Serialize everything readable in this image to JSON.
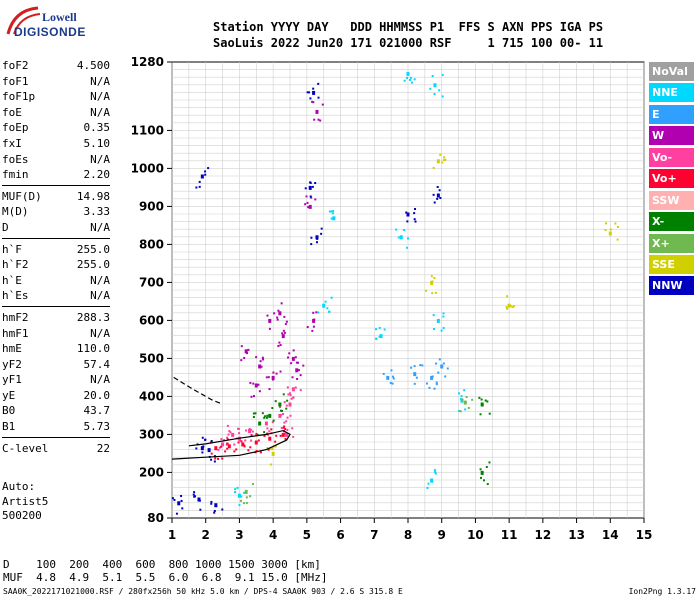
{
  "logo": {
    "line1": "Lowell",
    "line2": "DIGISONDE"
  },
  "header": {
    "line1": "Station YYYY DAY   DDD HHMMSS P1  FFS S AXN PPS IGA PS",
    "line2": "SaoLuis 2022 Jun20 171 021000 RSF     1 715 100 00- 11"
  },
  "params": [
    {
      "group": [
        {
          "name": "foF2",
          "value": "4.500"
        },
        {
          "name": "foF1",
          "value": "N/A"
        },
        {
          "name": "foF1p",
          "value": "N/A"
        },
        {
          "name": "foE",
          "value": "N/A"
        },
        {
          "name": "foEp",
          "value": "0.35"
        },
        {
          "name": "fxI",
          "value": "5.10"
        },
        {
          "name": "foEs",
          "value": "N/A"
        },
        {
          "name": "fmin",
          "value": "2.20"
        }
      ]
    },
    {
      "group": [
        {
          "name": "MUF(D)",
          "value": "14.98"
        },
        {
          "name": "M(D)",
          "value": "3.33"
        },
        {
          "name": "D",
          "value": "N/A"
        }
      ]
    },
    {
      "group": [
        {
          "name": "h`F",
          "value": "255.0"
        },
        {
          "name": "h`F2",
          "value": "255.0"
        },
        {
          "name": "h`E",
          "value": "N/A"
        },
        {
          "name": "h`Es",
          "value": "N/A"
        }
      ]
    },
    {
      "group": [
        {
          "name": "hmF2",
          "value": "288.3"
        },
        {
          "name": "hmF1",
          "value": "N/A"
        },
        {
          "name": "hmE",
          "value": "110.0"
        },
        {
          "name": "yF2",
          "value": "57.4"
        },
        {
          "name": "yF1",
          "value": "N/A"
        },
        {
          "name": "yE",
          "value": "20.0"
        },
        {
          "name": "B0",
          "value": "43.7"
        },
        {
          "name": "B1",
          "value": "5.73"
        }
      ]
    },
    {
      "group": [
        {
          "name": "C-level",
          "value": "22"
        }
      ]
    }
  ],
  "extra": {
    "auto": "Auto:",
    "artist": "Artist5",
    "code": "500200"
  },
  "legend": [
    {
      "label": "NoVal",
      "color": "#a0a0a0"
    },
    {
      "label": "NNE",
      "color": "#00d8ff"
    },
    {
      "label": "E",
      "color": "#30a0ff"
    },
    {
      "label": "W",
      "color": "#b000b0"
    },
    {
      "label": "Vo-",
      "color": "#ff40a0"
    },
    {
      "label": "Vo+",
      "color": "#ff0030"
    },
    {
      "label": "SSW",
      "color": "#ffb0b0"
    },
    {
      "label": "X-",
      "color": "#008000"
    },
    {
      "label": "X+",
      "color": "#70b850"
    },
    {
      "label": "SSE",
      "color": "#d0d000"
    },
    {
      "label": "NNW",
      "color": "#0000c0"
    }
  ],
  "dmuf": {
    "line1": "D    100  200  400  600  800 1000 1500 3000 [km]",
    "line2": "MUF  4.8  4.9  5.1  5.5  6.0  6.8  9.1 15.0 [MHz]"
  },
  "footer": {
    "left": "SAA0K_2022171021000.RSF / 280fx256h 50 kHz 5.0 km / DPS-4 SAA0K 903 / 2.6 S 315.8 E",
    "right": "Ion2Png 1.3.17"
  },
  "chart_data": {
    "type": "scatter",
    "xlim": [
      1,
      15
    ],
    "ylim": [
      80,
      1280
    ],
    "xticks": [
      1,
      2,
      3,
      4,
      5,
      6,
      7,
      8,
      9,
      10,
      11,
      12,
      13,
      14,
      15
    ],
    "yticks": [
      80,
      200,
      300,
      400,
      500,
      600,
      700,
      800,
      900,
      1000,
      1100,
      1280
    ],
    "grid": true,
    "series": [
      {
        "name": "W",
        "color": "#b000b0",
        "points": [
          [
            3.2,
            520
          ],
          [
            3.6,
            480
          ],
          [
            4.0,
            450
          ],
          [
            4.3,
            560
          ],
          [
            4.6,
            500
          ],
          [
            3.9,
            600
          ],
          [
            4.2,
            620
          ],
          [
            3.5,
            430
          ],
          [
            4.7,
            470
          ],
          [
            5.3,
            1150
          ],
          [
            5.1,
            900
          ],
          [
            5.2,
            600
          ]
        ]
      },
      {
        "name": "Vo-",
        "color": "#ff40a0",
        "points": [
          [
            2.8,
            300
          ],
          [
            3.3,
            310
          ],
          [
            3.8,
            330
          ],
          [
            4.2,
            350
          ],
          [
            4.5,
            380
          ],
          [
            4.6,
            420
          ],
          [
            4.4,
            300
          ],
          [
            3.0,
            290
          ],
          [
            2.5,
            275
          ]
        ]
      },
      {
        "name": "Vo+",
        "color": "#ff0030",
        "points": [
          [
            2.3,
            265
          ],
          [
            2.7,
            270
          ],
          [
            3.1,
            275
          ],
          [
            3.5,
            280
          ],
          [
            3.9,
            290
          ],
          [
            4.3,
            300
          ]
        ]
      },
      {
        "name": "NNW",
        "color": "#0000c0",
        "points": [
          [
            1.9,
            265
          ],
          [
            2.1,
            260
          ],
          [
            1.2,
            120
          ],
          [
            1.8,
            130
          ],
          [
            2.3,
            115
          ],
          [
            5.1,
            950
          ],
          [
            5.2,
            1200
          ],
          [
            5.3,
            820
          ],
          [
            8.0,
            880
          ],
          [
            8.9,
            930
          ],
          [
            1.9,
            980
          ]
        ]
      },
      {
        "name": "X-",
        "color": "#008000",
        "points": [
          [
            3.6,
            330
          ],
          [
            3.9,
            350
          ],
          [
            4.2,
            380
          ],
          [
            10.2,
            380
          ],
          [
            10.2,
            200
          ]
        ]
      },
      {
        "name": "NNE",
        "color": "#00d8ff",
        "points": [
          [
            5.5,
            640
          ],
          [
            5.8,
            870
          ],
          [
            7.2,
            560
          ],
          [
            7.8,
            820
          ],
          [
            8.0,
            1250
          ],
          [
            8.8,
            1220
          ],
          [
            8.9,
            600
          ],
          [
            8.7,
            180
          ],
          [
            3.0,
            140
          ],
          [
            9.6,
            390
          ]
        ]
      },
      {
        "name": "E",
        "color": "#30a0ff",
        "points": [
          [
            8.2,
            460
          ],
          [
            8.7,
            450
          ],
          [
            9.0,
            480
          ],
          [
            7.4,
            450
          ]
        ]
      },
      {
        "name": "SSE",
        "color": "#d0d000",
        "points": [
          [
            8.9,
            1020
          ],
          [
            8.7,
            700
          ],
          [
            14.0,
            830
          ],
          [
            11.0,
            640
          ],
          [
            4.0,
            250
          ]
        ]
      },
      {
        "name": "X+",
        "color": "#70b850",
        "points": [
          [
            3.2,
            150
          ],
          [
            9.7,
            385
          ]
        ]
      }
    ],
    "traces": [
      {
        "kind": "profile",
        "points": [
          [
            1.0,
            235
          ],
          [
            2.0,
            240
          ],
          [
            3.0,
            245
          ],
          [
            3.8,
            260
          ],
          [
            4.4,
            285
          ],
          [
            4.5,
            300
          ],
          [
            4.3,
            310
          ],
          [
            3.8,
            300
          ],
          [
            3.0,
            290
          ],
          [
            2.0,
            275
          ],
          [
            1.5,
            270
          ]
        ]
      },
      {
        "kind": "profile-dashed",
        "points": [
          [
            1.05,
            450
          ],
          [
            1.6,
            420
          ],
          [
            2.2,
            390
          ],
          [
            2.5,
            380
          ]
        ]
      }
    ]
  }
}
